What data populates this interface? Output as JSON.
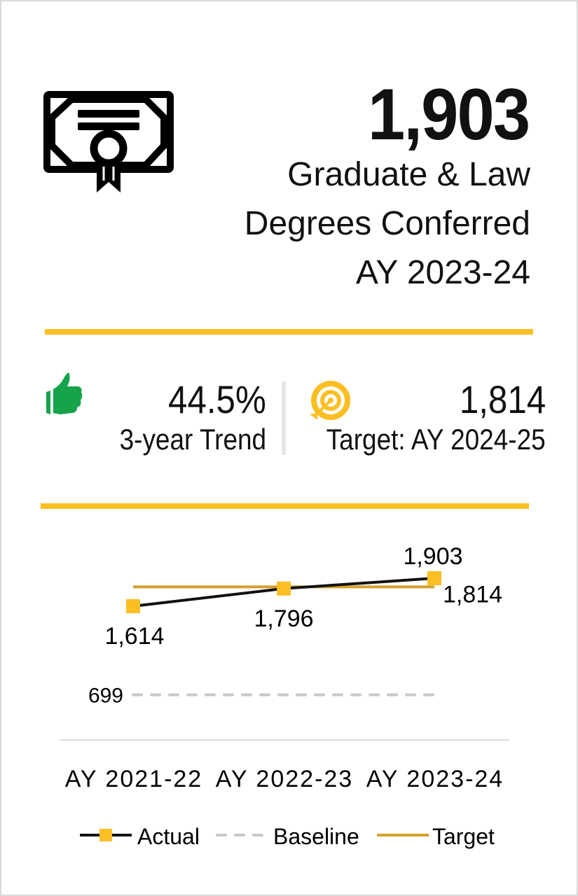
{
  "header": {
    "value": "1,903",
    "line1": "Graduate & Law",
    "line2": "Degrees Conferred",
    "line3": "AY 2023-24",
    "icon": "certificate-icon"
  },
  "stats": {
    "trend": {
      "value": "44.5%",
      "label": "3-year Trend",
      "icon": "thumbs-up-icon",
      "color": "#16a34a"
    },
    "target": {
      "value": "1,814",
      "label": "Target: AY 2024-25",
      "icon": "target-icon",
      "color": "#fbbf24"
    }
  },
  "colors": {
    "accent": "#fbbf24",
    "actual_line": "#111111",
    "marker": "#fbbf24",
    "baseline": "#c8c8c8",
    "target": "#d4a12a"
  },
  "chart_data": {
    "type": "line",
    "categories": [
      "AY 2021-22",
      "AY 2022-23",
      "AY 2023-24"
    ],
    "series": [
      {
        "name": "Actual",
        "values": [
          1614,
          1796,
          1903
        ],
        "labels": [
          "1,614",
          "1,796",
          "1,903"
        ]
      },
      {
        "name": "Baseline",
        "values": [
          699,
          699,
          699
        ],
        "labels": [
          "699"
        ]
      },
      {
        "name": "Target",
        "values": [
          1814,
          1814,
          1814
        ],
        "labels": [
          "1,814"
        ]
      }
    ],
    "ylim": [
      600,
      2000
    ],
    "grid": false,
    "legend": "bottom"
  }
}
